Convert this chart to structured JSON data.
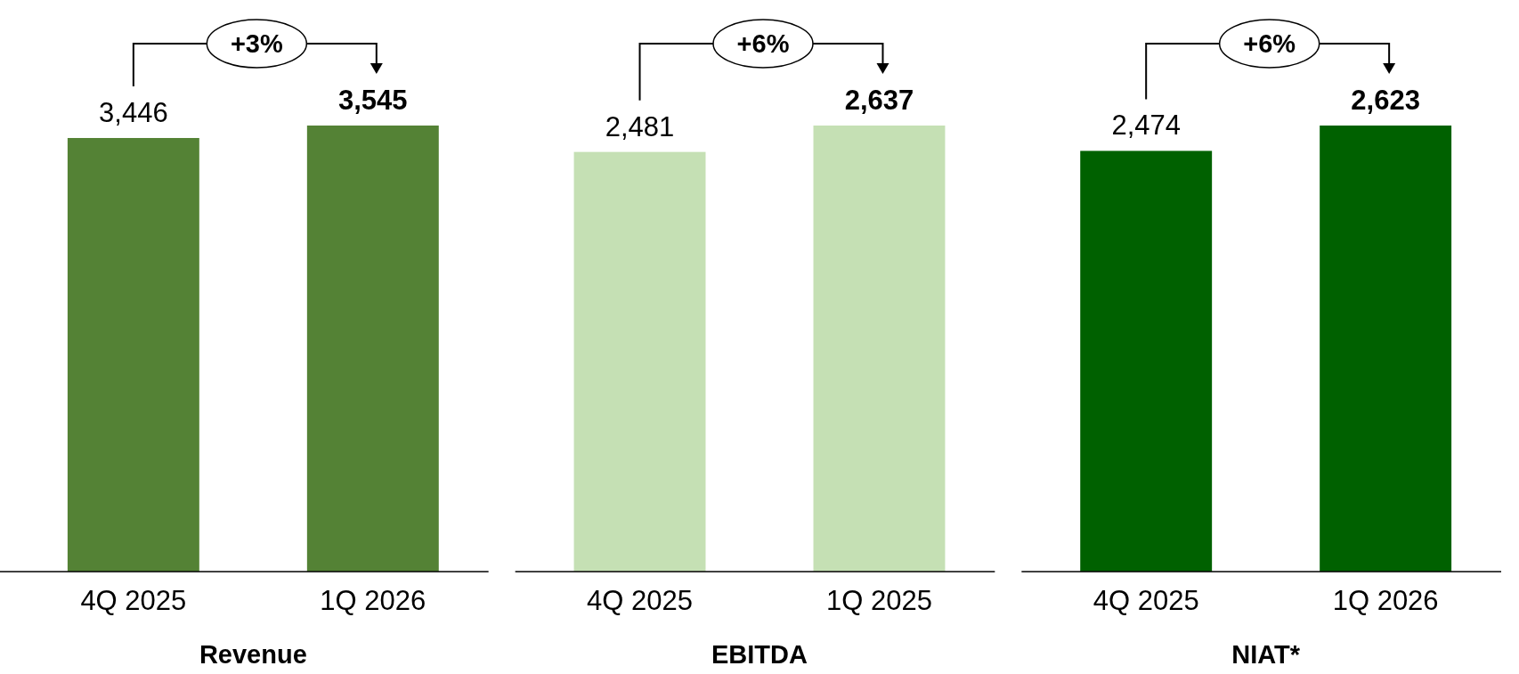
{
  "chart_data": [
    {
      "type": "bar",
      "categories": [
        "4Q 2025",
        "1Q 2026"
      ],
      "values": [
        3446,
        3545
      ],
      "value_labels": [
        "3,446",
        "3,545"
      ],
      "color": "#548235",
      "xlabel": "Revenue",
      "annotations": [
        "+3%"
      ]
    },
    {
      "type": "bar",
      "categories": [
        "4Q 2025",
        "1Q 2025"
      ],
      "values": [
        2481,
        2637
      ],
      "value_labels": [
        "2,481",
        "2,637"
      ],
      "color": "#c5e0b4",
      "xlabel": "EBITDA",
      "annotations": [
        "+6%"
      ]
    },
    {
      "type": "bar",
      "categories": [
        "4Q 2025",
        "1Q 2026"
      ],
      "values": [
        2474,
        2623
      ],
      "value_labels": [
        "2,474",
        "2,623"
      ],
      "color": "#006100",
      "xlabel": "NIAT*",
      "annotations": [
        "+6%"
      ]
    }
  ]
}
